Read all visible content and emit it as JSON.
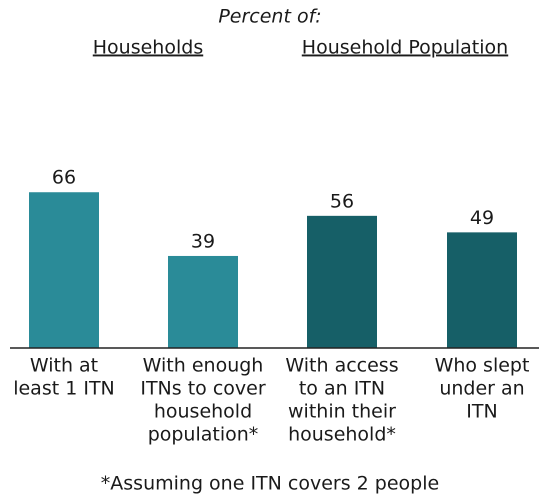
{
  "chart_data": {
    "type": "bar",
    "subtitle": "Percent of:",
    "group_labels": [
      "Households",
      "Household Population"
    ],
    "categories": [
      [
        "With at",
        "least 1 ITN"
      ],
      [
        "With enough",
        "ITNs to cover",
        "household",
        "population*"
      ],
      [
        "With access",
        "to an ITN",
        "within their",
        "household*"
      ],
      [
        "Who slept",
        "under an",
        "ITN"
      ]
    ],
    "values": [
      66,
      39,
      56,
      49
    ],
    "colors": [
      "#2a8b98",
      "#2a8b98",
      "#165f67",
      "#165f67"
    ],
    "annotation": "*Assuming one ITN covers 2 people"
  }
}
